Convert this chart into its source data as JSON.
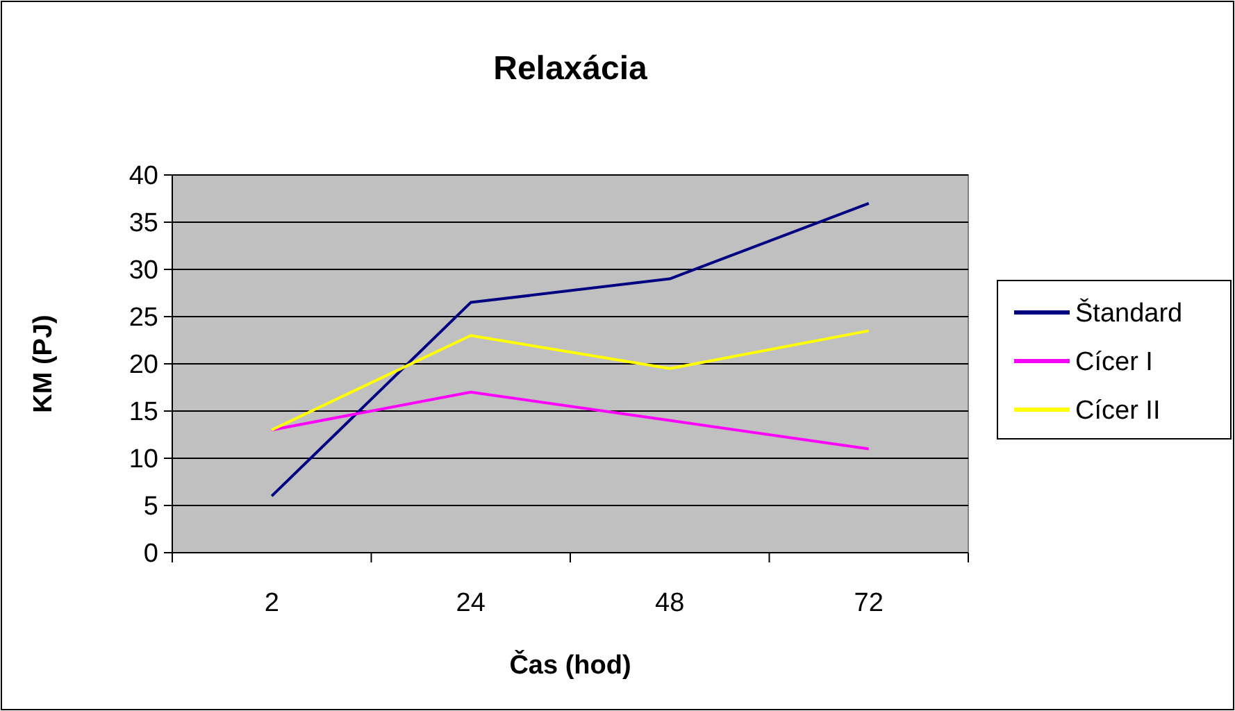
{
  "chart_data": {
    "type": "line",
    "title": "Relaxácia",
    "xlabel": "Čas (hod)",
    "ylabel": "KM (PJ)",
    "categories": [
      "2",
      "24",
      "48",
      "72"
    ],
    "series": [
      {
        "name": "Štandard",
        "color": "#000080",
        "values": [
          6,
          26.5,
          29,
          37
        ]
      },
      {
        "name": "Cícer I",
        "color": "#ff00ff",
        "values": [
          13,
          17,
          14,
          11
        ]
      },
      {
        "name": "Cícer II",
        "color": "#ffff00",
        "values": [
          13,
          23,
          19.5,
          23.5
        ]
      }
    ],
    "ylim": [
      0,
      40
    ],
    "yticks": [
      0,
      5,
      10,
      15,
      20,
      25,
      30,
      35,
      40
    ],
    "grid": "y",
    "legend": "right",
    "marker": "none",
    "line_style": "solid"
  }
}
